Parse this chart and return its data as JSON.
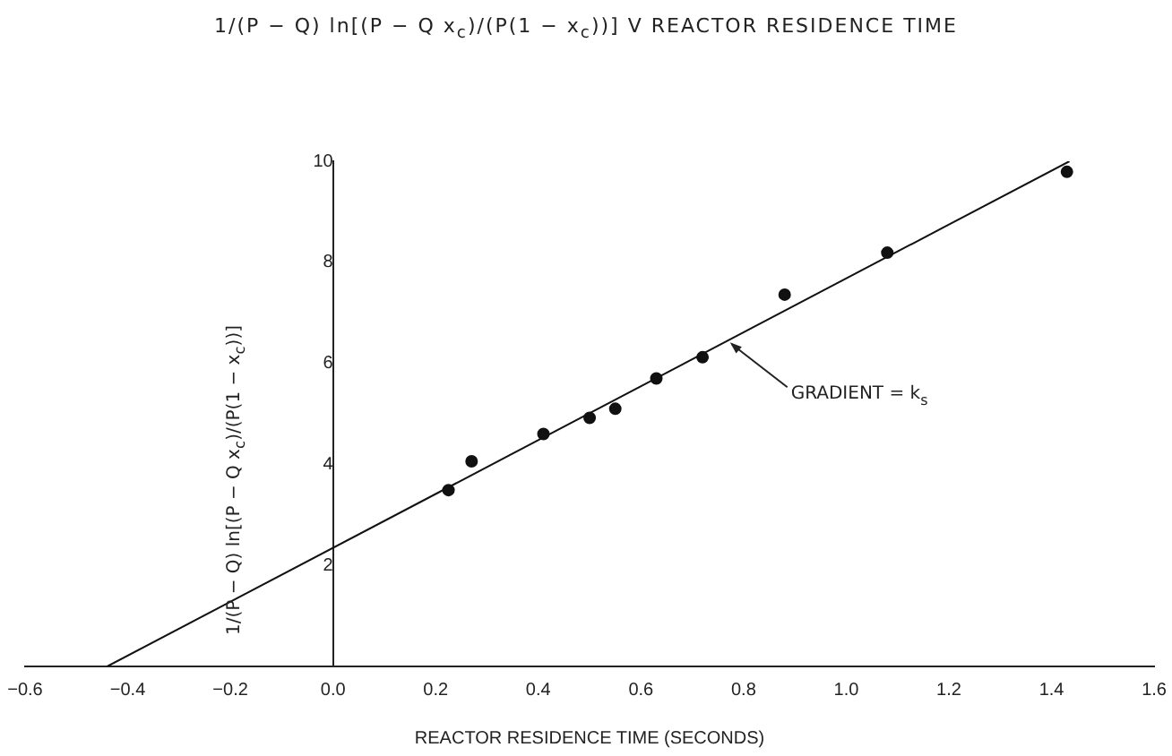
{
  "chart_data": {
    "type": "scatter",
    "title": "1/(P − Q) ln[(P − Q x$_{c}$)/(P(1 − x$_{c}$))]   V   REACTOR RESIDENCE TIME",
    "xlabel": "REACTOR RESIDENCE TIME (SECONDS)",
    "ylabel": "1/(P − Q) ln[(P − Q x$_{c}$)/(P(1 − x$_{c}$))]",
    "series": [
      {
        "color": "#111111",
        "x": [
          0.225,
          0.27,
          0.41,
          0.5,
          0.55,
          0.63,
          0.72,
          0.88,
          1.08,
          1.43
        ],
        "values": [
          3.49,
          4.06,
          4.6,
          4.92,
          5.1,
          5.7,
          6.12,
          7.36,
          8.19,
          9.79
        ]
      },
      {
        "type": "line",
        "color": "#111111",
        "x": [
          -0.44,
          1.435
        ],
        "values": [
          0,
          10.0
        ],
        "marker": "none"
      }
    ],
    "marker": "circle",
    "xlim": [
      -0.6,
      1.6
    ],
    "xticks": [
      {
        "value": -0.6,
        "label": "−0.6"
      },
      {
        "value": -0.4,
        "label": "−0.4"
      },
      {
        "value": -0.2,
        "label": "−0.2"
      },
      {
        "value": 0,
        "label": "0.0"
      },
      {
        "value": 0.2,
        "label": "0.2"
      },
      {
        "value": 0.4,
        "label": "0.4"
      },
      {
        "value": 0.6,
        "label": "0.6"
      },
      {
        "value": 0.8,
        "label": "0.8"
      },
      {
        "value": 1.0,
        "label": "1.0"
      },
      {
        "value": 1.2,
        "label": "1.2"
      },
      {
        "value": 1.4,
        "label": "1.4"
      },
      {
        "value": 1.6,
        "label": "1.6"
      }
    ],
    "ylim": [
      0,
      10
    ],
    "yticks": [
      2,
      4,
      6,
      8,
      10
    ],
    "grid": false,
    "legend": false,
    "annotations": [
      {
        "text": "GRADIENT = k$_{s}$",
        "x": 0.77,
        "y": 6.45
      }
    ]
  }
}
